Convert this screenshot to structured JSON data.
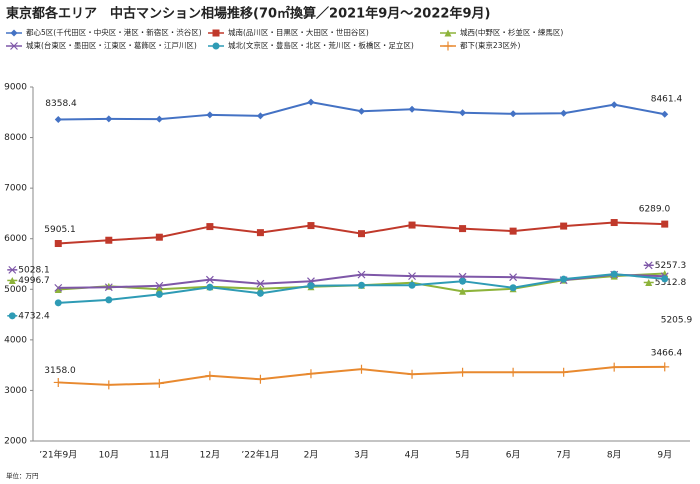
{
  "chart_data": {
    "type": "line",
    "title": "東京都各エリア　中古マンション相場推移(70㎡換算／2021年9月～2022年9月)",
    "note": "単位：万円",
    "categories": [
      "’21年9月",
      "10月",
      "11月",
      "12月",
      "’22年1月",
      "2月",
      "3月",
      "4月",
      "5月",
      "6月",
      "7月",
      "8月",
      "9月"
    ],
    "ylim": [
      2000,
      9000
    ],
    "yticks": [
      2000,
      3000,
      4000,
      5000,
      6000,
      7000,
      8000,
      9000
    ],
    "grid": false,
    "series": [
      {
        "name": "都心5区(千代田区・中央区・港区・新宿区・渋谷区)",
        "color": "#4472c4",
        "marker": "diamond",
        "values": [
          8358.4,
          8370,
          8365,
          8450,
          8430,
          8700,
          8520,
          8560,
          8490,
          8470,
          8480,
          8650,
          8461.4
        ]
      },
      {
        "name": "城南(品川区・目黒区・大田区・世田谷区)",
        "color": "#c0392b",
        "marker": "square",
        "values": [
          5905.1,
          5970,
          6030,
          6240,
          6120,
          6260,
          6100,
          6270,
          6200,
          6150,
          6250,
          6320,
          6289.0
        ],
        "value_labels": [
          "5905.1",
          null,
          null,
          null,
          null,
          null,
          null,
          null,
          null,
          null,
          null,
          null,
          "6289.0"
        ]
      },
      {
        "name": "城西(中野区・杉並区・練馬区)",
        "color": "#8db33a",
        "marker": "triangle",
        "values": [
          4996.7,
          5060,
          5000,
          5050,
          5010,
          5050,
          5080,
          5130,
          4960,
          5010,
          5180,
          5260,
          5312.8
        ]
      },
      {
        "name": "城東(台東区・墨田区・江東区・葛飾区・江戸川区)",
        "color": "#7e57a8",
        "marker": "x",
        "values": [
          5028.1,
          5040,
          5070,
          5190,
          5110,
          5160,
          5290,
          5260,
          5250,
          5240,
          5180,
          5290,
          5257.3
        ]
      },
      {
        "name": "城北(文京区・豊島区・北区・荒川区・板橋区・足立区)",
        "color": "#2e9bb5",
        "marker": "circle",
        "values": [
          4732.4,
          4790,
          4900,
          5040,
          4920,
          5070,
          5080,
          5080,
          5160,
          5030,
          5200,
          5300,
          5205.9
        ]
      },
      {
        "name": "都下(東京23区外)",
        "color": "#e8892f",
        "marker": "plus",
        "values": [
          3158.0,
          3110,
          3140,
          3290,
          3220,
          3330,
          3420,
          3320,
          3360,
          3360,
          3360,
          3460,
          3466.4
        ],
        "value_labels": [
          "3158.0",
          null,
          null,
          null,
          null,
          null,
          null,
          null,
          null,
          null,
          null,
          null,
          "3466.4"
        ]
      }
    ]
  }
}
